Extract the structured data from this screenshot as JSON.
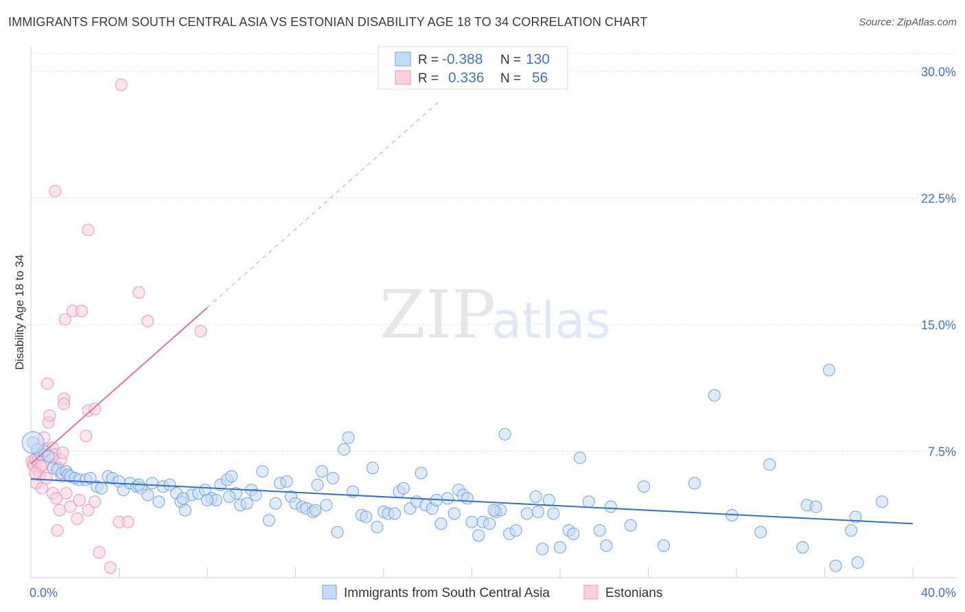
{
  "header": {
    "title": "IMMIGRANTS FROM SOUTH CENTRAL ASIA VS ESTONIAN DISABILITY AGE 18 TO 34 CORRELATION CHART",
    "source": "Source: ZipAtlas.com"
  },
  "watermark": {
    "zip": "ZIP",
    "atlas": "atlas"
  },
  "legend_top": [
    {
      "r_label": "R =",
      "r_value": "-0.388",
      "n_label": "N =",
      "n_value": "130",
      "color": "#6fa3e8"
    },
    {
      "r_label": "R =",
      "r_value": "0.336",
      "n_label": "N =",
      "n_value": "56",
      "color": "#f095b4"
    }
  ],
  "legend_bottom": [
    {
      "label": "Immigrants from South Central Asia",
      "color": "#6fa3e8"
    },
    {
      "label": "Estonians",
      "color": "#f095b4"
    }
  ],
  "chart_data": {
    "type": "scatter",
    "title": "IMMIGRANTS FROM SOUTH CENTRAL ASIA VS ESTONIAN DISABILITY AGE 18 TO 34 CORRELATION CHART",
    "xlabel": "",
    "ylabel": "Disability Age 18 to 34",
    "xlim": [
      0,
      40
    ],
    "ylim": [
      0,
      31.5
    ],
    "x_tick_labels": [
      {
        "value": 0,
        "label": "0.0%"
      },
      {
        "value": 40,
        "label": "40.0%"
      }
    ],
    "y_tick_labels": [
      {
        "value": 7.5,
        "label": "7.5%"
      },
      {
        "value": 15,
        "label": "15.0%"
      },
      {
        "value": 22.5,
        "label": "22.5%"
      },
      {
        "value": 30,
        "label": "30.0%"
      }
    ],
    "grid": true,
    "legend_position": "top-center",
    "series": [
      {
        "name": "Immigrants from South Central Asia",
        "color": "#6fa3e8",
        "trend": {
          "x": [
            0,
            40
          ],
          "y": [
            5.85,
            3.2
          ],
          "style": "solid"
        },
        "points": [
          [
            0.1,
            8.0
          ],
          [
            0.3,
            7.6
          ],
          [
            0.45,
            7.3
          ],
          [
            0.6,
            7.5
          ],
          [
            0.8,
            7.2
          ],
          [
            1.0,
            6.5
          ],
          [
            1.2,
            6.4
          ],
          [
            1.4,
            6.2
          ],
          [
            1.6,
            6.3
          ],
          [
            1.7,
            6.1
          ],
          [
            1.8,
            6.0
          ],
          [
            2.0,
            5.9
          ],
          [
            2.2,
            5.8
          ],
          [
            2.5,
            5.8
          ],
          [
            2.7,
            5.9
          ],
          [
            3.0,
            5.4
          ],
          [
            3.2,
            5.3
          ],
          [
            3.5,
            6.0
          ],
          [
            3.7,
            5.9
          ],
          [
            4.0,
            5.7
          ],
          [
            4.2,
            5.2
          ],
          [
            4.5,
            5.6
          ],
          [
            4.8,
            5.4
          ],
          [
            5.0,
            5.3
          ],
          [
            5.3,
            4.9
          ],
          [
            5.5,
            5.6
          ],
          [
            5.8,
            4.5
          ],
          [
            6.0,
            5.4
          ],
          [
            6.3,
            5.5
          ],
          [
            6.6,
            5.0
          ],
          [
            6.8,
            4.5
          ],
          [
            7.0,
            4.0
          ],
          [
            7.3,
            4.9
          ],
          [
            7.6,
            5.0
          ],
          [
            7.9,
            5.2
          ],
          [
            8.2,
            4.7
          ],
          [
            8.4,
            4.6
          ],
          [
            8.6,
            5.5
          ],
          [
            8.9,
            5.8
          ],
          [
            9.1,
            6.0
          ],
          [
            9.3,
            5.0
          ],
          [
            9.5,
            4.3
          ],
          [
            9.8,
            4.4
          ],
          [
            10.0,
            5.2
          ],
          [
            10.2,
            4.9
          ],
          [
            10.5,
            6.3
          ],
          [
            10.8,
            3.4
          ],
          [
            11.1,
            4.4
          ],
          [
            11.3,
            5.6
          ],
          [
            11.6,
            5.7
          ],
          [
            11.8,
            4.8
          ],
          [
            12.0,
            4.4
          ],
          [
            12.3,
            4.2
          ],
          [
            12.5,
            4.1
          ],
          [
            12.8,
            3.9
          ],
          [
            13.0,
            5.5
          ],
          [
            13.2,
            6.3
          ],
          [
            13.4,
            4.3
          ],
          [
            13.7,
            5.9
          ],
          [
            13.9,
            2.7
          ],
          [
            14.2,
            7.6
          ],
          [
            14.4,
            8.3
          ],
          [
            14.6,
            5.1
          ],
          [
            15.0,
            3.7
          ],
          [
            15.2,
            3.6
          ],
          [
            15.5,
            6.5
          ],
          [
            15.7,
            3.0
          ],
          [
            16.0,
            3.9
          ],
          [
            16.2,
            3.8
          ],
          [
            16.5,
            3.8
          ],
          [
            16.7,
            5.1
          ],
          [
            16.9,
            5.3
          ],
          [
            17.2,
            4.1
          ],
          [
            17.5,
            4.5
          ],
          [
            17.7,
            6.2
          ],
          [
            17.9,
            4.3
          ],
          [
            18.2,
            4.1
          ],
          [
            18.4,
            4.6
          ],
          [
            18.6,
            3.2
          ],
          [
            18.9,
            4.7
          ],
          [
            19.2,
            3.8
          ],
          [
            19.4,
            5.2
          ],
          [
            19.6,
            4.9
          ],
          [
            20.0,
            3.3
          ],
          [
            20.3,
            2.5
          ],
          [
            20.5,
            3.3
          ],
          [
            20.8,
            3.2
          ],
          [
            21.1,
            3.9
          ],
          [
            21.3,
            4.0
          ],
          [
            21.5,
            8.5
          ],
          [
            21.7,
            2.6
          ],
          [
            22.0,
            2.8
          ],
          [
            22.5,
            3.8
          ],
          [
            22.9,
            4.8
          ],
          [
            23.2,
            1.7
          ],
          [
            23.5,
            4.6
          ],
          [
            23.7,
            3.8
          ],
          [
            24.0,
            1.8
          ],
          [
            24.4,
            2.8
          ],
          [
            24.6,
            2.6
          ],
          [
            24.9,
            7.1
          ],
          [
            25.3,
            4.5
          ],
          [
            25.8,
            2.8
          ],
          [
            26.1,
            1.9
          ],
          [
            26.3,
            4.2
          ],
          [
            27.2,
            3.1
          ],
          [
            27.8,
            5.4
          ],
          [
            28.7,
            1.9
          ],
          [
            30.1,
            5.6
          ],
          [
            31.0,
            10.8
          ],
          [
            31.8,
            3.7
          ],
          [
            33.1,
            2.7
          ],
          [
            33.5,
            6.7
          ],
          [
            35.0,
            1.8
          ],
          [
            35.2,
            4.3
          ],
          [
            35.6,
            4.2
          ],
          [
            36.2,
            12.3
          ],
          [
            36.5,
            0.7
          ],
          [
            37.2,
            2.8
          ],
          [
            37.4,
            3.6
          ],
          [
            37.5,
            0.9
          ],
          [
            38.6,
            4.5
          ],
          [
            9.0,
            4.8
          ],
          [
            12.9,
            4.0
          ],
          [
            19.8,
            4.7
          ],
          [
            21.0,
            4.0
          ],
          [
            23.0,
            3.9
          ],
          [
            4.9,
            5.5
          ],
          [
            6.9,
            4.7
          ],
          [
            8.0,
            4.6
          ]
        ]
      },
      {
        "name": "Estonians",
        "color": "#f095b4",
        "trend": {
          "x": [
            0,
            8
          ],
          "y": [
            6.75,
            16.0
          ],
          "style": "solid"
        },
        "trend_extension": {
          "x": [
            8,
            18.5
          ],
          "y": [
            16.0,
            28.2
          ],
          "style": "dashed"
        },
        "points": [
          [
            0.05,
            6.9
          ],
          [
            0.1,
            6.7
          ],
          [
            0.15,
            6.6
          ],
          [
            0.2,
            7.0
          ],
          [
            0.25,
            5.6
          ],
          [
            0.3,
            6.4
          ],
          [
            0.35,
            7.1
          ],
          [
            0.4,
            6.1
          ],
          [
            0.5,
            5.3
          ],
          [
            0.6,
            8.3
          ],
          [
            0.7,
            7.6
          ],
          [
            0.75,
            11.5
          ],
          [
            0.8,
            9.2
          ],
          [
            0.85,
            9.6
          ],
          [
            0.9,
            6.7
          ],
          [
            1.0,
            7.7
          ],
          [
            1.0,
            5.0
          ],
          [
            1.1,
            7.3
          ],
          [
            1.2,
            2.8
          ],
          [
            1.3,
            4.0
          ],
          [
            1.35,
            7.0
          ],
          [
            1.4,
            6.0
          ],
          [
            1.5,
            10.6
          ],
          [
            1.5,
            10.3
          ],
          [
            1.55,
            15.3
          ],
          [
            1.6,
            5.0
          ],
          [
            1.8,
            4.2
          ],
          [
            1.9,
            15.8
          ],
          [
            2.1,
            3.5
          ],
          [
            2.2,
            4.6
          ],
          [
            2.3,
            15.8
          ],
          [
            2.5,
            8.4
          ],
          [
            2.6,
            20.6
          ],
          [
            2.6,
            4.0
          ],
          [
            2.6,
            9.9
          ],
          [
            2.9,
            10.0
          ],
          [
            2.9,
            4.5
          ],
          [
            3.1,
            1.5
          ],
          [
            3.6,
            0.6
          ],
          [
            4.0,
            3.3
          ],
          [
            4.1,
            29.2
          ],
          [
            4.4,
            3.3
          ],
          [
            4.9,
            16.9
          ],
          [
            5.3,
            15.2
          ],
          [
            7.7,
            14.6
          ],
          [
            1.1,
            22.9
          ],
          [
            0.55,
            6.7
          ],
          [
            0.65,
            7.3
          ],
          [
            1.25,
            6.5
          ],
          [
            0.45,
            6.6
          ],
          [
            0.95,
            7.1
          ],
          [
            1.45,
            7.4
          ],
          [
            0.2,
            6.2
          ],
          [
            0.4,
            7.5
          ],
          [
            0.7,
            5.9
          ],
          [
            1.15,
            4.7
          ]
        ]
      }
    ]
  }
}
